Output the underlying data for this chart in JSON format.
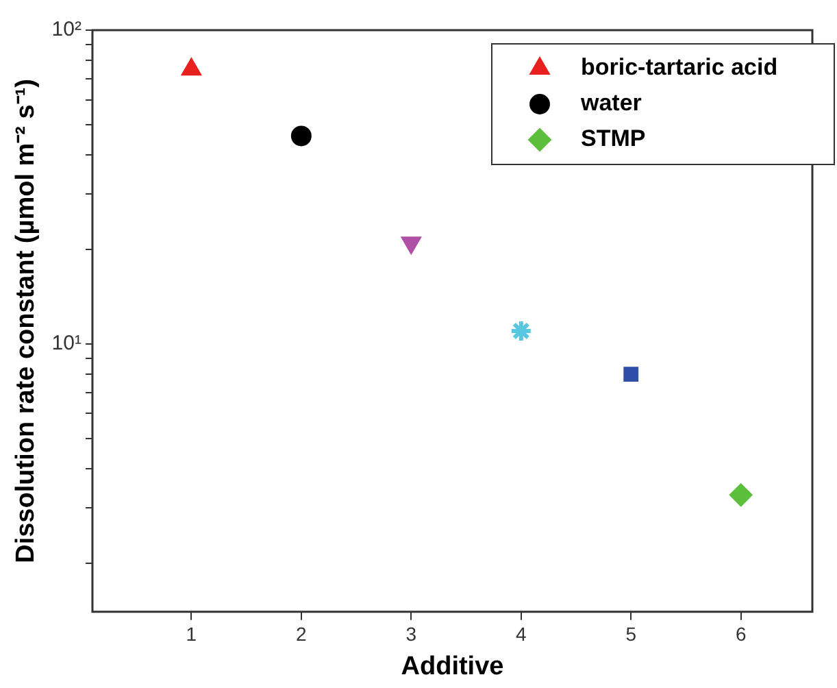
{
  "chart_data": {
    "type": "scatter",
    "xlabel": "Additive",
    "ylabel": "Dissolution rate constant (µmol m⁻² s⁻¹)",
    "log": "y",
    "xlim": [
      0.1,
      6.65
    ],
    "xticks": [
      1,
      2,
      3,
      4,
      5,
      6
    ],
    "ylim": [
      1.4,
      100
    ],
    "yticks": [
      {
        "value": 2,
        "label": null
      },
      {
        "value": 3,
        "label": null
      },
      {
        "value": 4,
        "label": null
      },
      {
        "value": 5,
        "label": null
      },
      {
        "value": 6,
        "label": null
      },
      {
        "value": 7,
        "label": null
      },
      {
        "value": 8,
        "label": null
      },
      {
        "value": 9,
        "label": null
      },
      {
        "value": 10,
        "label": "10¹"
      },
      {
        "value": 20,
        "label": null
      },
      {
        "value": 30,
        "label": null
      },
      {
        "value": 40,
        "label": null
      },
      {
        "value": 50,
        "label": null
      },
      {
        "value": 60,
        "label": null
      },
      {
        "value": 70,
        "label": null
      },
      {
        "value": 80,
        "label": null
      },
      {
        "value": 90,
        "label": null
      },
      {
        "value": 100,
        "label": "10²"
      }
    ],
    "grid": false,
    "legend": "top right",
    "series": [
      {
        "name": "boric-tartaric acid",
        "color": "#e8201e",
        "marker": "triangle",
        "x": [
          1
        ],
        "values": [
          75
        ]
      },
      {
        "name": "water",
        "color": "#000000",
        "marker": "circle",
        "x": [
          2
        ],
        "values": [
          46
        ]
      },
      {
        "color": "#b04fa6",
        "marker": "triangle-down",
        "x": [
          3
        ],
        "values": [
          21
        ]
      },
      {
        "color": "#58c8e0",
        "marker": "cross",
        "x": [
          4
        ],
        "values": [
          11
        ]
      },
      {
        "color": "#3050a8",
        "marker": "square",
        "x": [
          5
        ],
        "values": [
          8
        ]
      },
      {
        "name": "STMP",
        "color": "#5cbf3c",
        "marker": "diamond",
        "x": [
          6
        ],
        "values": [
          3.3
        ]
      }
    ]
  }
}
